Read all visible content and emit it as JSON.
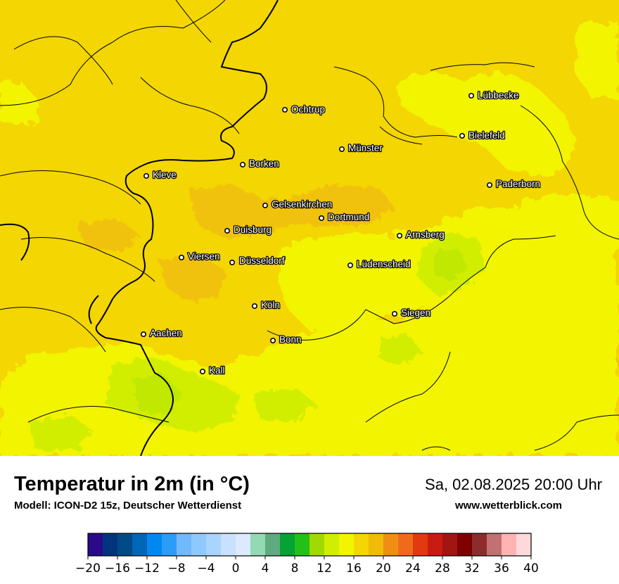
{
  "title": "Temperatur in 2m (in °C)",
  "subtitle": "Modell: ICON-D2 15z, Deutscher Wetterdienst",
  "datetime": "Sa, 02.08.2025 20:00 Uhr",
  "website": "www.wetterblick.com",
  "cities": [
    "Lübbecke",
    "Ochtrup",
    "Bielefeld",
    "Münster",
    "Borken",
    "Kleve",
    "Paderborn",
    "Gelsenkirchen",
    "Dortmund",
    "Duisburg",
    "Arnsberg",
    "Viersen",
    "Düsseldorf",
    "Lüdenscheid",
    "Köln",
    "Siegen",
    "Aachen",
    "Bonn",
    "Kall"
  ],
  "colors": {
    "map_base": "#f3d602",
    "map_warm": "#f0c20b",
    "map_cool": "#f3f400",
    "map_cooler": "#d2ee00",
    "map_coolest": "#c0e800",
    "border": "#000000"
  },
  "scale": {
    "ticks": [
      "−20",
      "−16",
      "−12",
      "−8",
      "−4",
      "0",
      "4",
      "8",
      "12",
      "16",
      "20",
      "24",
      "28",
      "32",
      "36",
      "40"
    ],
    "colors": [
      "#2b0a8a",
      "#00347c",
      "#004a88",
      "#0066b7",
      "#0088f0",
      "#2b9df9",
      "#71b9fc",
      "#8fc8fd",
      "#a8d4fe",
      "#c7e1fe",
      "#dbeafe",
      "#93d9b4",
      "#60aa80",
      "#06a233",
      "#23c017",
      "#a2d900",
      "#d2ee00",
      "#f3f400",
      "#f3d602",
      "#f1bb0a",
      "#ef8e13",
      "#f06a1c",
      "#e23a0e",
      "#c81b12",
      "#a31413",
      "#7e0000",
      "#8c2c2c",
      "#c27070",
      "#ffb3b3",
      "#ffd9d9"
    ]
  }
}
